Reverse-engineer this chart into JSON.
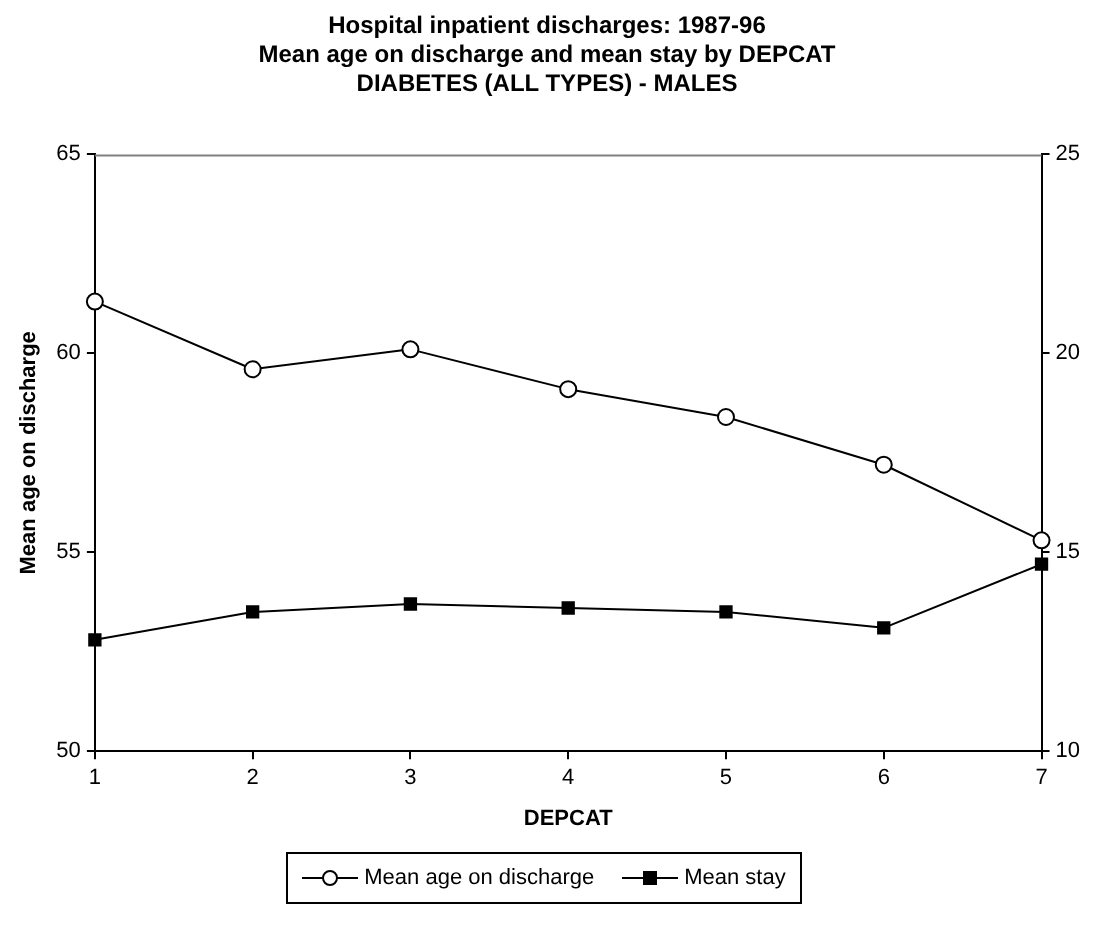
{
  "chart_data": {
    "type": "line",
    "title": "Hospital inpatient discharges: 1987-96\nMean age on discharge and mean stay by DEPCAT\nDIABETES (ALL TYPES) - MALES",
    "xlabel": "DEPCAT",
    "ylabel": "Mean age on discharge",
    "x": [
      1,
      2,
      3,
      4,
      5,
      6,
      7
    ],
    "xlim": [
      1,
      7
    ],
    "xticks": [
      1,
      2,
      3,
      4,
      5,
      6,
      7
    ],
    "ylim": [
      50,
      65
    ],
    "yticks": [
      50,
      55,
      60,
      65
    ],
    "y2lim": [
      10,
      25
    ],
    "y2ticks": [
      10,
      15,
      20,
      25
    ],
    "grid": false,
    "legend": "bottom",
    "series": [
      {
        "name": "Mean age on discharge",
        "color": "#000000",
        "marker": "circle",
        "values": [
          61.3,
          59.6,
          60.1,
          59.1,
          58.4,
          57.2,
          55.3
        ]
      },
      {
        "name": "Mean stay",
        "color": "#000000",
        "marker": "square",
        "axis": "y2",
        "values": [
          12.8,
          13.5,
          13.7,
          13.6,
          13.5,
          13.1,
          14.7
        ]
      }
    ]
  }
}
